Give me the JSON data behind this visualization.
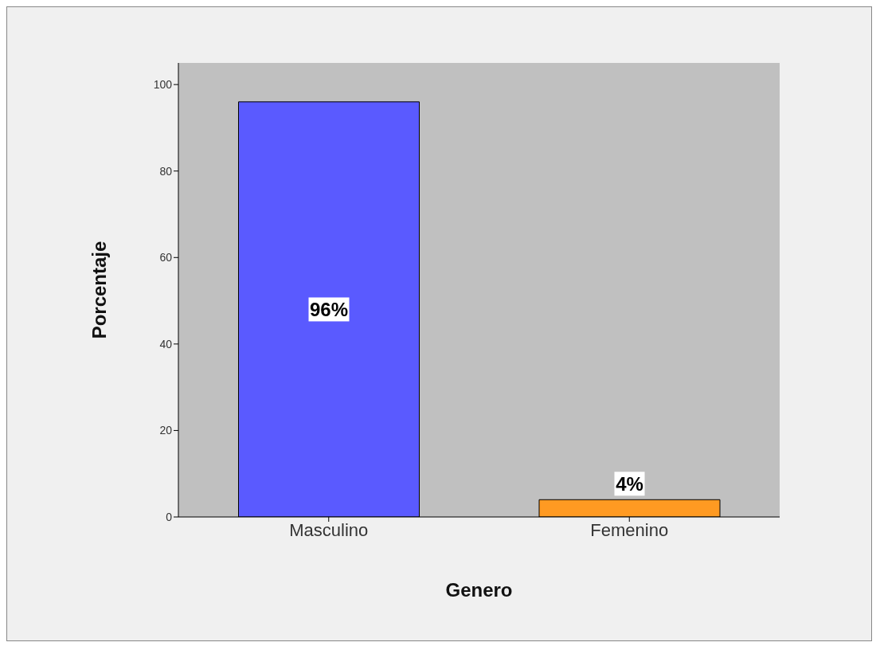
{
  "chart_data": {
    "type": "bar",
    "xlabel": "Genero",
    "ylabel": "Porcentaje",
    "categories": [
      "Masculino",
      "Femenino"
    ],
    "values": [
      96,
      4
    ],
    "colors": [
      "#5a5aff",
      "#ff9a22"
    ],
    "value_labels": [
      "96%",
      "4%"
    ],
    "ylim": [
      0,
      105
    ],
    "yticks": [
      0,
      20,
      40,
      60,
      80,
      100
    ],
    "grid": false,
    "legend": false
  }
}
